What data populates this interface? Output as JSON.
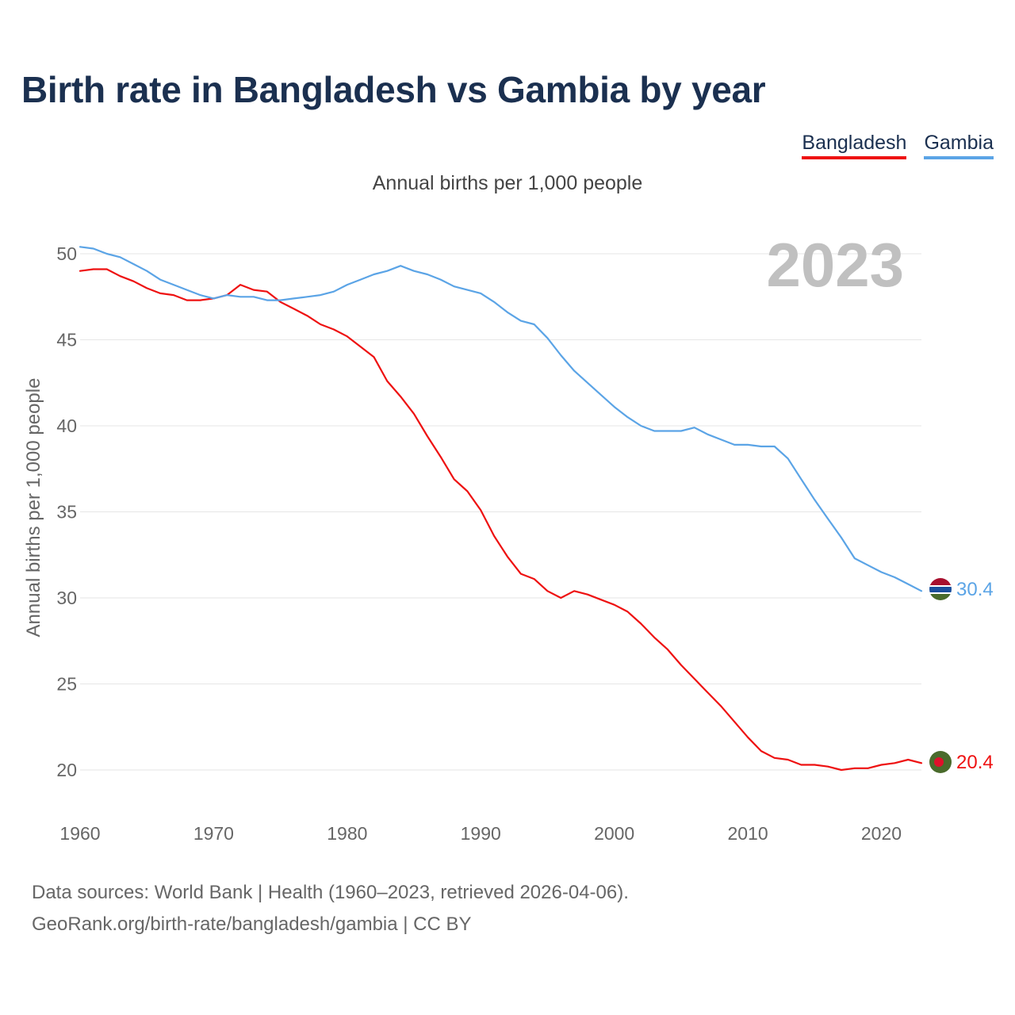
{
  "title": "Birth rate in Bangladesh vs Gambia by year",
  "subtitle": "Annual births per 1,000 people",
  "year_label": "2023",
  "footer": {
    "sources": "Data sources: World Bank | Health (1960–2023, retrieved 2026-04-06).",
    "credit": "GeoRank.org/birth-rate/bangladesh/gambia | CC BY"
  },
  "chart_data": {
    "type": "line",
    "title": "Birth rate in Bangladesh vs Gambia by year",
    "subtitle": "Annual births per 1,000 people",
    "xlabel": "",
    "ylabel": "Annual births per 1,000 people",
    "xlim": [
      1960,
      2023
    ],
    "ylim": [
      20,
      50
    ],
    "x_ticks": [
      1960,
      1970,
      1980,
      1990,
      2000,
      2010,
      2020
    ],
    "y_ticks": [
      20,
      25,
      30,
      35,
      40,
      45,
      50
    ],
    "grid": true,
    "legend_position": "top-right",
    "x": [
      1960,
      1961,
      1962,
      1963,
      1964,
      1965,
      1966,
      1967,
      1968,
      1969,
      1970,
      1971,
      1972,
      1973,
      1974,
      1975,
      1976,
      1977,
      1978,
      1979,
      1980,
      1981,
      1982,
      1983,
      1984,
      1985,
      1986,
      1987,
      1988,
      1989,
      1990,
      1991,
      1992,
      1993,
      1994,
      1995,
      1996,
      1997,
      1998,
      1999,
      2000,
      2001,
      2002,
      2003,
      2004,
      2005,
      2006,
      2007,
      2008,
      2009,
      2010,
      2011,
      2012,
      2013,
      2014,
      2015,
      2016,
      2017,
      2018,
      2019,
      2020,
      2021,
      2022,
      2023
    ],
    "series": [
      {
        "name": "Bangladesh",
        "color": "#ee1111",
        "end_label": "20.4",
        "values": [
          49.0,
          49.1,
          49.1,
          48.7,
          48.4,
          48.0,
          47.7,
          47.6,
          47.3,
          47.3,
          47.4,
          47.6,
          48.2,
          47.9,
          47.8,
          47.2,
          46.8,
          46.4,
          45.9,
          45.6,
          45.2,
          44.6,
          44.0,
          42.6,
          41.7,
          40.7,
          39.4,
          38.2,
          36.9,
          36.2,
          35.1,
          33.6,
          32.4,
          31.4,
          31.1,
          30.4,
          30.0,
          30.4,
          30.2,
          29.9,
          29.6,
          29.2,
          28.5,
          27.7,
          27.0,
          26.1,
          25.3,
          24.5,
          23.7,
          22.8,
          21.9,
          21.1,
          20.7,
          20.6,
          20.3,
          20.3,
          20.2,
          20.0,
          20.1,
          20.1,
          20.3,
          20.4,
          20.6,
          20.4
        ]
      },
      {
        "name": "Gambia",
        "color": "#5ba4e6",
        "end_label": "30.4",
        "values": [
          50.4,
          50.3,
          50.0,
          49.8,
          49.4,
          49.0,
          48.5,
          48.2,
          47.9,
          47.6,
          47.4,
          47.6,
          47.5,
          47.5,
          47.3,
          47.3,
          47.4,
          47.5,
          47.6,
          47.8,
          48.2,
          48.5,
          48.8,
          49.0,
          49.3,
          49.0,
          48.8,
          48.5,
          48.1,
          47.9,
          47.7,
          47.2,
          46.6,
          46.1,
          45.9,
          45.1,
          44.1,
          43.2,
          42.5,
          41.8,
          41.1,
          40.5,
          40.0,
          39.7,
          39.7,
          39.7,
          39.9,
          39.5,
          39.2,
          38.9,
          38.9,
          38.8,
          38.8,
          38.1,
          36.9,
          35.7,
          34.6,
          33.5,
          32.3,
          31.9,
          31.5,
          31.2,
          30.8,
          30.4
        ]
      }
    ]
  }
}
